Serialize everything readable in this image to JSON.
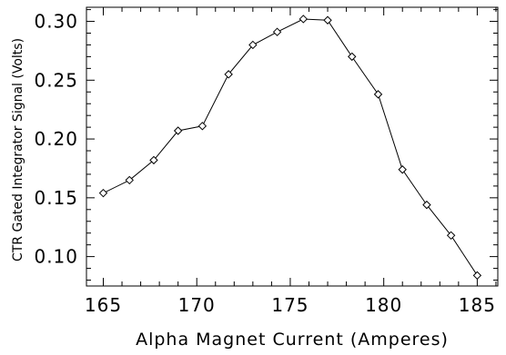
{
  "chart_data": {
    "type": "line",
    "title": "",
    "xlabel": "Alpha Magnet Current (Amperes)",
    "ylabel": "CTR Gated Integrator Signal (Volts)",
    "xlim": [
      164.1,
      186.1
    ],
    "ylim": [
      0.075,
      0.312
    ],
    "xticks": [
      165,
      170,
      175,
      180,
      185
    ],
    "yticks": [
      0.1,
      0.15,
      0.2,
      0.25,
      0.3
    ],
    "xtick_labels": [
      "165",
      "170",
      "175",
      "180",
      "185"
    ],
    "ytick_labels": [
      "0.10",
      "0.15",
      "0.20",
      "0.25",
      "0.30"
    ],
    "grid": false,
    "marker": "diamond",
    "line_color": "#000000",
    "series": [
      {
        "x": [
          165.0,
          166.4,
          167.7,
          169.0,
          170.3,
          171.7,
          173.0,
          174.3,
          175.7,
          177.0,
          178.3,
          179.7,
          181.0,
          182.3,
          183.6,
          185.0
        ],
        "y": [
          0.154,
          0.165,
          0.182,
          0.207,
          0.211,
          0.255,
          0.28,
          0.291,
          0.302,
          0.301,
          0.27,
          0.238,
          0.174,
          0.144,
          0.118,
          0.084
        ]
      }
    ]
  }
}
